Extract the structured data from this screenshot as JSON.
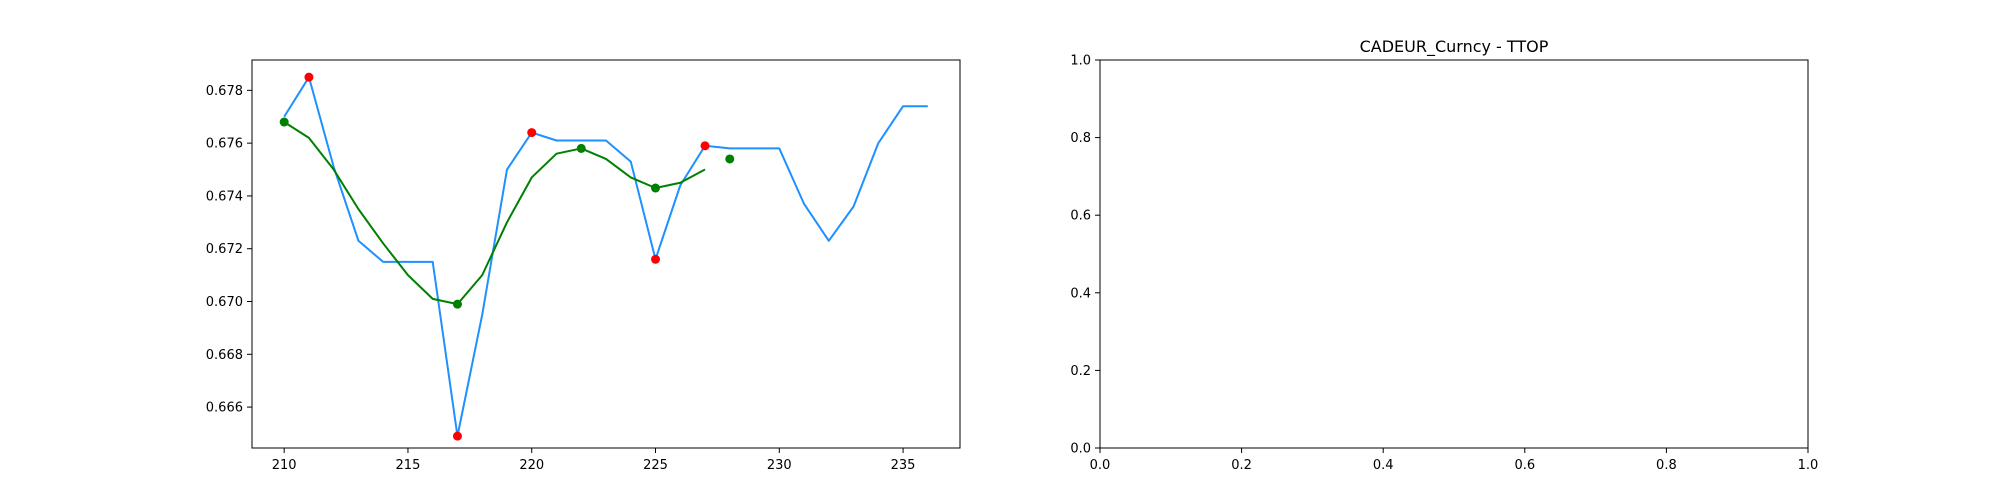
{
  "chart_data": [
    {
      "type": "line",
      "title": "",
      "xlabel": "",
      "ylabel": "",
      "xlim": [
        208.7,
        237.3
      ],
      "ylim": [
        0.66445,
        0.67915
      ],
      "x_ticks": [
        210,
        215,
        220,
        225,
        230,
        235
      ],
      "x_tick_labels": [
        "210",
        "215",
        "220",
        "225",
        "230",
        "235"
      ],
      "y_ticks": [
        0.666,
        0.668,
        0.67,
        0.672,
        0.674,
        0.676,
        0.678
      ],
      "y_tick_labels": [
        "0.666",
        "0.668",
        "0.670",
        "0.672",
        "0.674",
        "0.676",
        "0.678"
      ],
      "grid": false,
      "series": [
        {
          "kind": "line",
          "color": "#1e90ff",
          "x": [
            210,
            211,
            212,
            213,
            214,
            215,
            216,
            217,
            218,
            219,
            220,
            221,
            222,
            223,
            224,
            225,
            226,
            227,
            228,
            229,
            230,
            231,
            232,
            233,
            234,
            235,
            236
          ],
          "y": [
            0.677,
            0.6785,
            0.6751,
            0.6723,
            0.6715,
            0.6715,
            0.6715,
            0.6649,
            0.6695,
            0.675,
            0.6764,
            0.6761,
            0.6761,
            0.6761,
            0.6753,
            0.6716,
            0.6744,
            0.6759,
            0.6758,
            0.6758,
            0.6758,
            0.6737,
            0.6723,
            0.6736,
            0.676,
            0.6774,
            0.6774
          ]
        },
        {
          "kind": "line",
          "color": "#008000",
          "x": [
            210,
            211,
            212,
            213,
            214,
            215,
            216,
            217,
            218,
            219,
            220,
            221,
            222,
            223,
            224,
            225,
            226,
            227
          ],
          "y": [
            0.6768,
            0.6762,
            0.675,
            0.6735,
            0.6722,
            0.671,
            0.6701,
            0.6699,
            0.671,
            0.673,
            0.6747,
            0.6756,
            0.6758,
            0.6754,
            0.6747,
            0.6743,
            0.6745,
            0.675
          ]
        },
        {
          "kind": "scatter",
          "color": "#ff0000",
          "x": [
            211,
            217,
            220,
            225,
            227
          ],
          "y": [
            0.6785,
            0.6649,
            0.6764,
            0.6716,
            0.6759
          ]
        },
        {
          "kind": "scatter",
          "color": "#008000",
          "x": [
            210,
            217,
            222,
            225,
            228
          ],
          "y": [
            0.6768,
            0.6699,
            0.6758,
            0.6743,
            0.6754
          ]
        }
      ]
    },
    {
      "type": "line",
      "title": "CADEUR_Curncy - TTOP",
      "xlabel": "",
      "ylabel": "",
      "xlim": [
        0,
        1
      ],
      "ylim": [
        0,
        1
      ],
      "x_ticks": [
        0,
        0.2,
        0.4,
        0.6,
        0.8,
        1.0
      ],
      "x_tick_labels": [
        "0.0",
        "0.2",
        "0.4",
        "0.6",
        "0.8",
        "1.0"
      ],
      "y_ticks": [
        0,
        0.2,
        0.4,
        0.6,
        0.8,
        1.0
      ],
      "y_tick_labels": [
        "0.0",
        "0.2",
        "0.4",
        "0.6",
        "0.8",
        "1.0"
      ],
      "grid": false,
      "series": []
    }
  ]
}
